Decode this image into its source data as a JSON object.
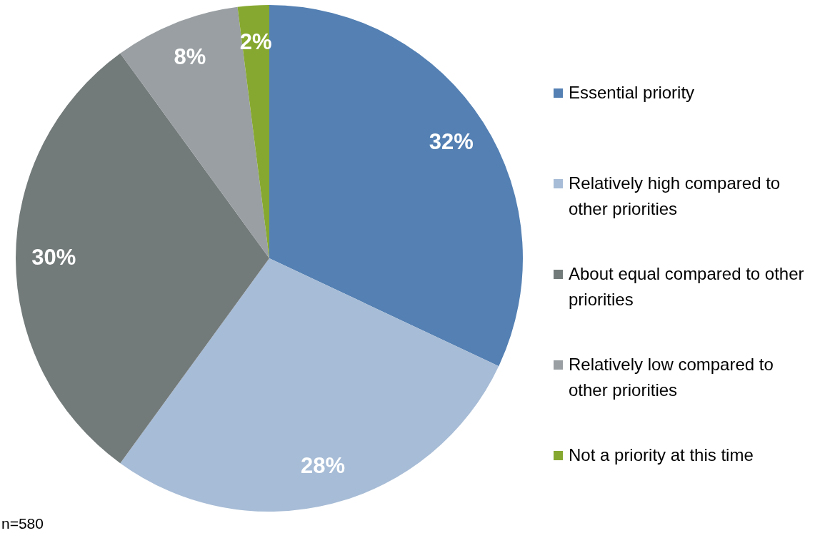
{
  "chart_data": {
    "type": "pie",
    "categories": [
      "Essential priority",
      "Relatively high compared to other priorities",
      "About equal compared to other priorities",
      "Relatively low compared to other priorities",
      "Not a priority at this time"
    ],
    "values": [
      32,
      28,
      30,
      8,
      2
    ],
    "colors": [
      "#5480b3",
      "#a7bcd6",
      "#737a7a",
      "#999fa2",
      "#86a830"
    ],
    "value_labels": [
      "32%",
      "28%",
      "30%",
      "8%",
      "2%"
    ],
    "legend": "right",
    "annotations": [
      "n=580"
    ]
  }
}
